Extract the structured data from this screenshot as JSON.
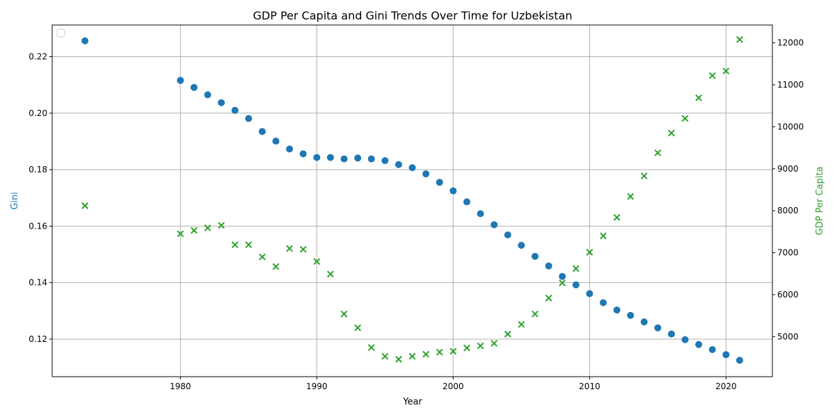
{
  "chart_data": {
    "type": "scatter",
    "title": "GDP Per Capita and Gini Trends Over Time for Uzbekistan",
    "xlabel": "Year",
    "ylabel_left": "Gini",
    "ylabel_right": "GDP Per Capita",
    "xlim": [
      1970.6,
      2023.4
    ],
    "ylim_left": [
      0.1067,
      0.2312
    ],
    "ylim_right": [
      4045,
      12425
    ],
    "x_ticks": [
      1980,
      1990,
      2000,
      2010,
      2020
    ],
    "y_left_ticks": [
      0.12,
      0.14,
      0.16,
      0.18,
      0.2,
      0.22
    ],
    "y_right_ticks": [
      5000,
      6000,
      7000,
      8000,
      9000,
      10000,
      11000,
      12000
    ],
    "grid": true,
    "legend": "top-left (empty)",
    "colors": {
      "gini": "#1f77b4",
      "gdp": "#2ca02c"
    },
    "series": [
      {
        "axis": "left",
        "marker": "circle",
        "x": [
          1973,
          1980,
          1981,
          1982,
          1983,
          1984,
          1985,
          1986,
          1987,
          1988,
          1989,
          1990,
          1991,
          1992,
          1993,
          1994,
          1995,
          1996,
          1997,
          1998,
          1999,
          2000,
          2001,
          2002,
          2003,
          2004,
          2005,
          2006,
          2007,
          2008,
          2009,
          2010,
          2011,
          2012,
          2013,
          2014,
          2015,
          2016,
          2017,
          2018,
          2019,
          2020,
          2021
        ],
        "y": [
          0.2256,
          0.2116,
          0.2091,
          0.2065,
          0.2037,
          0.201,
          0.1981,
          0.1935,
          0.1901,
          0.1873,
          0.1856,
          0.1843,
          0.1843,
          0.1838,
          0.1841,
          0.1838,
          0.1832,
          0.1818,
          0.1807,
          0.1785,
          0.1755,
          0.1725,
          0.1686,
          0.1644,
          0.1605,
          0.1569,
          0.1532,
          0.1493,
          0.1459,
          0.1422,
          0.1392,
          0.1361,
          0.1329,
          0.1303,
          0.1284,
          0.1261,
          0.124,
          0.1218,
          0.1198,
          0.1181,
          0.1163,
          0.1145,
          0.1125
        ]
      },
      {
        "axis": "right",
        "marker": "x",
        "x": [
          1973,
          1980,
          1981,
          1982,
          1983,
          1984,
          1985,
          1986,
          1987,
          1988,
          1989,
          1990,
          1991,
          1992,
          1993,
          1994,
          1995,
          1996,
          1997,
          1998,
          1999,
          2000,
          2001,
          2002,
          2003,
          2004,
          2005,
          2006,
          2007,
          2008,
          2009,
          2010,
          2011,
          2012,
          2013,
          2014,
          2015,
          2016,
          2017,
          2018,
          2019,
          2020,
          2021
        ],
        "y": [
          8120,
          7450,
          7530,
          7590,
          7650,
          7190,
          7190,
          6900,
          6670,
          7100,
          7080,
          6790,
          6490,
          5540,
          5210,
          4740,
          4530,
          4460,
          4530,
          4580,
          4630,
          4650,
          4730,
          4780,
          4840,
          5060,
          5290,
          5540,
          5920,
          6280,
          6620,
          7010,
          7400,
          7840,
          8340,
          8830,
          9380,
          9850,
          10200,
          10690,
          11220,
          11330,
          12080
        ]
      }
    ]
  }
}
